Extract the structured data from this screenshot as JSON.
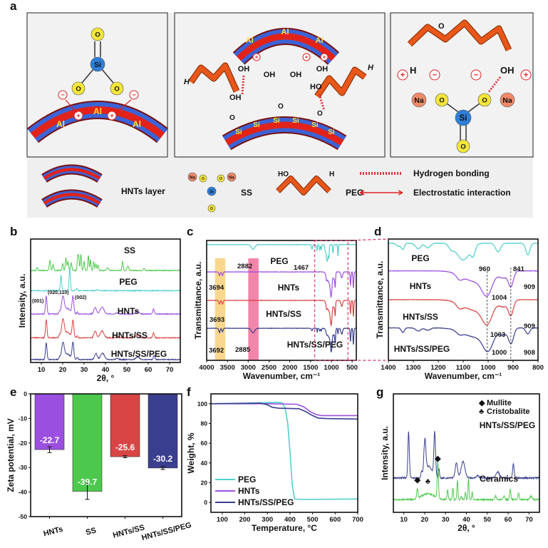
{
  "panel_letters": {
    "a": "a",
    "b": "b",
    "c": "c",
    "d": "d",
    "e": "e",
    "f": "f",
    "g": "g"
  },
  "panel_a": {
    "atoms": {
      "si": "Si",
      "o": "O",
      "al": "Al",
      "na": "Na",
      "h": "H",
      "oh": "OH",
      "ho": "HO"
    },
    "charges": {
      "plus": "+",
      "minus": "−"
    },
    "legend": {
      "hnts_layer": "HNTs layer",
      "ss": "SS",
      "peg": "PEG",
      "hydrogen_bonding": "Hydrogen bonding",
      "electrostatic": "Electrostatic interaction"
    },
    "colors": {
      "hnt_outer": "#3b63d6",
      "hnt_inner": "#e2231a",
      "peg": "#e8561a",
      "si": "#2f7fd8",
      "o": "#f3e63a",
      "na": "#f08a6a",
      "hbond": "#e0303a"
    }
  },
  "chart_data": [
    {
      "panel": "b",
      "type": "line",
      "xlabel": "2θ, °",
      "ylabel": "Intensity, a.u.",
      "xlim": [
        5,
        75
      ],
      "ylim": [
        0,
        5.5
      ],
      "xticks": [
        10,
        20,
        30,
        40,
        50,
        60,
        70
      ],
      "yticks_shown": false,
      "grid": false,
      "series": [
        {
          "name": "SS",
          "color": "#4cc94c",
          "y_offset": 4.1,
          "peaks": [
            [
              8,
              0.12,
              0.3
            ],
            [
              14,
              0.45,
              0.3
            ],
            [
              15.5,
              0.25,
              0.3
            ],
            [
              20,
              0.3,
              0.3
            ],
            [
              21.5,
              0.55,
              0.3
            ],
            [
              22.5,
              0.4,
              0.3
            ],
            [
              24,
              0.35,
              0.3
            ],
            [
              27,
              0.6,
              0.25
            ],
            [
              27.5,
              0.55,
              0.25
            ],
            [
              28.5,
              0.72,
              0.25
            ],
            [
              30,
              0.4,
              0.25
            ],
            [
              32,
              0.68,
              0.25
            ],
            [
              33,
              0.5,
              0.25
            ],
            [
              34.5,
              0.4,
              0.25
            ],
            [
              35.5,
              0.3,
              0.25
            ],
            [
              36.5,
              0.25,
              0.3
            ],
            [
              41,
              0.12,
              0.4
            ],
            [
              48,
              0.38,
              0.3
            ],
            [
              50.5,
              0.2,
              0.4
            ],
            [
              58,
              0.08,
              0.4
            ]
          ]
        },
        {
          "name": "PEG",
          "color": "#4fd0cc",
          "y_offset": 3.2,
          "peaks": [
            [
              19.2,
              0.7,
              0.3
            ],
            [
              23.3,
              1.0,
              0.3
            ],
            [
              26.5,
              0.08,
              0.4
            ],
            [
              36,
              0.05,
              0.5
            ]
          ]
        },
        {
          "name": "HNTs",
          "color": "#9b4fe0",
          "y_offset": 2.16,
          "peaks": [
            [
              12.3,
              0.8,
              0.35
            ],
            [
              18.5,
              0.1,
              0.3
            ],
            [
              20.1,
              0.7,
              0.6
            ],
            [
              22,
              0.25,
              1.6
            ],
            [
              24.8,
              0.75,
              0.4
            ],
            [
              26.8,
              0.08,
              0.3
            ],
            [
              35.2,
              0.3,
              0.6
            ],
            [
              38.4,
              0.3,
              0.9
            ],
            [
              45.5,
              0.05,
              0.6
            ],
            [
              55,
              0.12,
              0.8
            ],
            [
              62.5,
              0.22,
              0.35
            ]
          ]
        },
        {
          "name": "HNTs/SS",
          "color": "#d94444",
          "y_offset": 1.1,
          "peaks": [
            [
              12.3,
              0.8,
              0.35
            ],
            [
              18.5,
              0.12,
              0.3
            ],
            [
              20.1,
              0.72,
              0.6
            ],
            [
              22,
              0.25,
              1.6
            ],
            [
              24.8,
              0.75,
              0.4
            ],
            [
              26.8,
              0.08,
              0.3
            ],
            [
              35.2,
              0.3,
              0.6
            ],
            [
              38.4,
              0.3,
              0.9
            ],
            [
              45.5,
              0.05,
              0.6
            ],
            [
              55,
              0.12,
              0.8
            ],
            [
              62.5,
              0.22,
              0.35
            ]
          ]
        },
        {
          "name": "HNTs/SS/PEG",
          "color": "#3a3f8f",
          "y_offset": 0.13,
          "peaks": [
            [
              12.3,
              0.75,
              0.35
            ],
            [
              18.5,
              0.1,
              0.3
            ],
            [
              20.1,
              0.65,
              0.6
            ],
            [
              22,
              0.25,
              1.6
            ],
            [
              24.8,
              0.75,
              0.4
            ],
            [
              26.8,
              0.08,
              0.3
            ],
            [
              35.5,
              0.28,
              0.6
            ],
            [
              38.6,
              0.28,
              0.9
            ],
            [
              45.5,
              0.05,
              0.6
            ],
            [
              55,
              0.12,
              0.8
            ],
            [
              62.8,
              0.2,
              0.35
            ]
          ]
        }
      ],
      "annotations": [
        "(001)",
        "(020,110)",
        "(002)"
      ]
    },
    {
      "panel": "c",
      "type": "line",
      "xlabel": "Wavenumber, cm⁻¹",
      "ylabel": "Transmittance, a.u.",
      "xlim": [
        4000,
        400
      ],
      "ylim": [
        0,
        4
      ],
      "xticks": [
        4000,
        3500,
        3000,
        2500,
        2000,
        1500,
        1000,
        500
      ],
      "yticks_shown": false,
      "grid": false,
      "highlight_bands": [
        {
          "range": [
            3800,
            3550
          ],
          "color": "#f7c96a"
        },
        {
          "range": [
            3000,
            2750
          ],
          "color": "#ee5d8e"
        }
      ],
      "zoom_region": [
        1400,
        600
      ],
      "annotations": [
        "2882",
        "1467",
        "3694",
        "3693",
        "3692",
        "2885"
      ]
    },
    {
      "panel": "d",
      "type": "line",
      "xlabel": "Wavenumber, cm⁻¹",
      "ylabel": "Transmittance, a.u.",
      "xlim": [
        1400,
        800
      ],
      "ylim": [
        0,
        4
      ],
      "xticks": [
        1400,
        1300,
        1200,
        1100,
        1000,
        900,
        800
      ],
      "yticks_shown": false,
      "grid": false,
      "reference_lines": [
        1004,
        909
      ],
      "annotations": [
        "960",
        "841",
        "909",
        "1004",
        "909",
        "1003",
        "1000",
        "908"
      ]
    },
    {
      "panel": "e",
      "type": "bar",
      "xlabel": "",
      "ylabel": "Zeta potential, mV",
      "categories": [
        "HNTs",
        "SS",
        "HNTs/SS",
        "HNTs/SS/PEG"
      ],
      "values": [
        -22.7,
        -39.7,
        -25.6,
        -30.2
      ],
      "errors": [
        1.2,
        3.3,
        0.4,
        0.6
      ],
      "data_labels": [
        "-22.7",
        "-39.7",
        "-25.6",
        "-30.2"
      ],
      "colors": [
        "#9b4fe0",
        "#4cc94c",
        "#d94444",
        "#3a3f8f"
      ],
      "ylim": [
        -50,
        0
      ],
      "yticks": [
        0,
        -10,
        -20,
        -30,
        -40,
        -50
      ]
    },
    {
      "panel": "f",
      "type": "line",
      "xlabel": "Temperature, °C",
      "ylabel": "Weight, %",
      "xlim": [
        50,
        700
      ],
      "ylim": [
        -10,
        110
      ],
      "xticks": [
        100,
        200,
        300,
        400,
        500,
        600,
        700
      ],
      "yticks": [
        0,
        20,
        40,
        60,
        80,
        100
      ],
      "legend": "bottom-left",
      "series": [
        {
          "name": "PEG",
          "color": "#4fd0cc",
          "points": [
            [
              50,
              100
            ],
            [
              200,
              100.5
            ],
            [
              350,
              101.5
            ],
            [
              365,
              101
            ],
            [
              378,
              96
            ],
            [
              390,
              80
            ],
            [
              400,
              52
            ],
            [
              410,
              18
            ],
            [
              420,
              3.5
            ],
            [
              450,
              3
            ],
            [
              700,
              3.5
            ]
          ]
        },
        {
          "name": "HNTs",
          "color": "#9b4fe0",
          "points": [
            [
              50,
              100
            ],
            [
              300,
              100
            ],
            [
              430,
              99.5
            ],
            [
              460,
              97
            ],
            [
              490,
              92
            ],
            [
              515,
              89
            ],
            [
              540,
              88
            ],
            [
              700,
              88
            ]
          ]
        },
        {
          "name": "HNTs/SS/PEG",
          "color": "#3a3f8f",
          "points": [
            [
              50,
              100
            ],
            [
              270,
              100.5
            ],
            [
              300,
              99
            ],
            [
              320,
              96.5
            ],
            [
              350,
              95.5
            ],
            [
              440,
              95
            ],
            [
              470,
              92
            ],
            [
              500,
              88
            ],
            [
              525,
              85.5
            ],
            [
              560,
              85
            ],
            [
              700,
              84.5
            ]
          ]
        }
      ]
    },
    {
      "panel": "g",
      "type": "line",
      "xlabel": "2θ, °",
      "ylabel": "Intensity, a.u.",
      "xlim": [
        5,
        75
      ],
      "ylim": [
        0,
        4
      ],
      "xticks": [
        10,
        20,
        30,
        40,
        50,
        60,
        70
      ],
      "yticks_shown": false,
      "legend": "top-right",
      "legend_entries": [
        {
          "symbol": "◆",
          "name": "Mullite"
        },
        {
          "symbol": "♣",
          "name": "Cristobalite"
        }
      ],
      "series": [
        {
          "name": "HNTs/SS/PEG",
          "color": "#3a3f8f",
          "y_offset": 1.16,
          "peaks": [
            [
              12.3,
              1.55,
              0.35
            ],
            [
              18.5,
              0.2,
              0.3
            ],
            [
              20.1,
              1.15,
              0.5
            ],
            [
              22,
              0.4,
              1.5
            ],
            [
              24.8,
              1.5,
              0.4
            ],
            [
              26.8,
              0.3,
              0.3
            ],
            [
              35.2,
              0.5,
              0.6
            ],
            [
              38.4,
              0.55,
              0.9
            ],
            [
              45.5,
              0.08,
              0.6
            ],
            [
              55,
              0.2,
              0.8
            ],
            [
              62.5,
              0.5,
              0.35
            ]
          ]
        },
        {
          "name": "Ceramics",
          "color": "#4cc94c",
          "y_offset": 0.43,
          "peaks": [
            [
              16.5,
              0.35,
              0.3
            ],
            [
              21.5,
              0.2,
              3
            ],
            [
              26.3,
              1.25,
              0.3
            ],
            [
              31,
              0.35,
              0.25
            ],
            [
              33.5,
              0.4,
              0.25
            ],
            [
              35.7,
              0.65,
              0.25
            ],
            [
              37.5,
              0.1,
              0.3
            ],
            [
              39.5,
              0.25,
              0.25
            ],
            [
              41,
              0.7,
              0.25
            ],
            [
              42.8,
              0.25,
              0.25
            ],
            [
              54,
              0.12,
              0.4
            ],
            [
              58,
              0.12,
              0.4
            ],
            [
              61,
              0.35,
              0.3
            ],
            [
              65,
              0.25,
              0.3
            ],
            [
              71,
              0.12,
              0.5
            ]
          ]
        }
      ],
      "markers": [
        {
          "symbol": "◆",
          "x": 16.5
        },
        {
          "symbol": "♣",
          "x": 21.5
        },
        {
          "symbol": "◆",
          "x": 26.3
        }
      ]
    }
  ],
  "ir_series": [
    {
      "name": "PEG",
      "color": "#4fd0cc",
      "y_offset": 3.86,
      "dips": [
        [
          2882,
          0.15,
          40
        ],
        [
          1467,
          0.15,
          12
        ],
        [
          1360,
          0.1,
          8
        ],
        [
          1342,
          0.2,
          6
        ],
        [
          1280,
          0.18,
          10
        ],
        [
          1242,
          0.15,
          10
        ],
        [
          1148,
          0.15,
          10
        ],
        [
          1100,
          0.55,
          25
        ],
        [
          1060,
          0.3,
          8
        ],
        [
          960,
          0.28,
          10
        ],
        [
          841,
          0.38,
          8
        ]
      ]
    },
    {
      "name": "HNTs",
      "color": "#9b4fe0",
      "y_offset": 2.95,
      "dips": [
        [
          3694,
          0.12,
          15
        ],
        [
          3620,
          0.12,
          15
        ],
        [
          1115,
          0.15,
          12
        ],
        [
          1050,
          0.35,
          50
        ],
        [
          1004,
          0.6,
          20
        ],
        [
          940,
          0.2,
          15
        ],
        [
          909,
          0.5,
          10
        ],
        [
          750,
          0.2,
          20
        ],
        [
          540,
          0.45,
          10
        ],
        [
          470,
          0.55,
          10
        ]
      ]
    },
    {
      "name": "HNTs/SS",
      "color": "#d94444",
      "y_offset": 2.0,
      "dips": [
        [
          3693,
          0.12,
          15
        ],
        [
          3620,
          0.12,
          15
        ],
        [
          1115,
          0.15,
          12
        ],
        [
          1050,
          0.35,
          50
        ],
        [
          1003,
          0.6,
          20
        ],
        [
          940,
          0.2,
          15
        ],
        [
          909,
          0.5,
          10
        ],
        [
          750,
          0.2,
          20
        ],
        [
          540,
          0.45,
          10
        ],
        [
          470,
          0.55,
          10
        ]
      ]
    },
    {
      "name": "HNTs/SS/PEG",
      "color": "#3a3f8f",
      "y_offset": 1.07,
      "dips": [
        [
          3692,
          0.14,
          15
        ],
        [
          3620,
          0.12,
          15
        ],
        [
          2885,
          0.15,
          40
        ],
        [
          1467,
          0.08,
          12
        ],
        [
          1342,
          0.15,
          6
        ],
        [
          1280,
          0.1,
          10
        ],
        [
          1242,
          0.08,
          10
        ],
        [
          1115,
          0.1,
          12
        ],
        [
          1050,
          0.3,
          50
        ],
        [
          1000,
          0.6,
          20
        ],
        [
          940,
          0.2,
          15
        ],
        [
          908,
          0.5,
          10
        ],
        [
          841,
          0.2,
          8
        ],
        [
          750,
          0.2,
          20
        ],
        [
          540,
          0.45,
          10
        ],
        [
          470,
          0.55,
          10
        ]
      ]
    }
  ]
}
